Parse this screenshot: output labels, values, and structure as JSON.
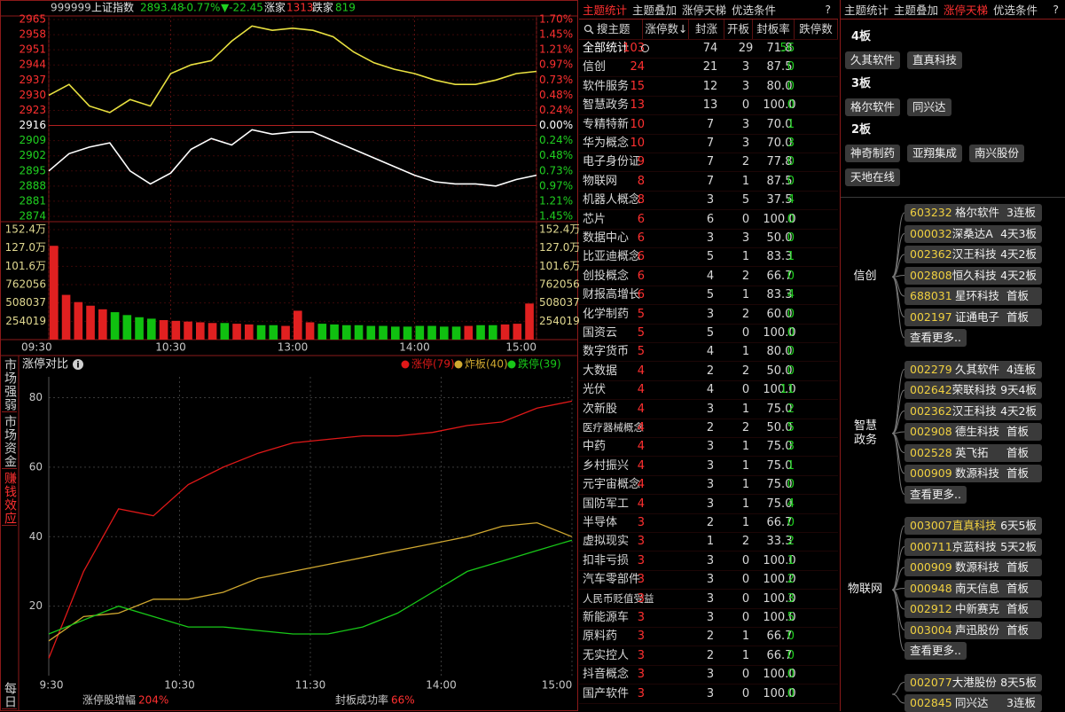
{
  "header": {
    "code": "999999",
    "name": "上证指数",
    "price": "2893.48",
    "pct": "-0.77%",
    "change": "▼-22.45",
    "up_label": "涨家",
    "up_count": "1313",
    "down_label": "跌家",
    "down_count": "819"
  },
  "top_chart": {
    "type": "line",
    "ylim": [
      2874,
      2965
    ],
    "yticks": [
      2965,
      2958,
      2951,
      2944,
      2937,
      2930,
      2923,
      2916,
      2909,
      2902,
      2895,
      2888,
      2881,
      2874
    ],
    "pct_labels": [
      "1.70%",
      "1.45%",
      "1.21%",
      "0.97%",
      "0.73%",
      "0.48%",
      "0.24%",
      "0.00%",
      "0.24%",
      "0.48%",
      "0.73%",
      "0.97%",
      "1.21%",
      "1.45%"
    ],
    "xlim": [
      0,
      240
    ],
    "xticks": [
      {
        "value": 0,
        "label": "09:30"
      },
      {
        "value": 60,
        "label": "10:30"
      },
      {
        "value": 120,
        "label": "13:00"
      },
      {
        "value": 180,
        "label": "14:00"
      },
      {
        "value": 240,
        "label": "15:00"
      }
    ],
    "series": [
      {
        "color": "#ffffff",
        "values": [
          2895,
          2903,
          2906,
          2908,
          2895,
          2889,
          2894,
          2905,
          2910,
          2907,
          2914,
          2912,
          2913,
          2913,
          2909,
          2905,
          2901,
          2897,
          2893,
          2890,
          2889,
          2889,
          2888,
          2891,
          2893
        ]
      },
      {
        "color": "#e8e040",
        "values": [
          2930,
          2935,
          2925,
          2922,
          2928,
          2925,
          2940,
          2944,
          2946,
          2955,
          2962,
          2960,
          2961,
          2960,
          2957,
          2950,
          2945,
          2942,
          2940,
          2937,
          2935,
          2935,
          2937,
          2940,
          2941
        ]
      }
    ],
    "volume": {
      "ylim": [
        0,
        1524000
      ],
      "yticks": [
        {
          "value": 1524000,
          "label": "152.4万"
        },
        {
          "value": 1270000,
          "label": "127.0万"
        },
        {
          "value": 1016000,
          "label": "101.6万"
        },
        762056,
        508037,
        254019
      ],
      "values": [
        1300000,
        620000,
        520000,
        470000,
        420000,
        380000,
        340000,
        310000,
        290000,
        270000,
        260000,
        250000,
        240000,
        230000,
        230000,
        220000,
        210000,
        200000,
        200000,
        190000,
        400000,
        240000,
        220000,
        210000,
        200000,
        200000,
        190000,
        190000,
        180000,
        180000,
        190000,
        190000,
        180000,
        180000,
        190000,
        200000,
        200000,
        210000,
        220000,
        500000
      ]
    }
  },
  "side_tabs": {
    "items": [
      "市场强弱",
      "市场资金",
      "赚钱效应",
      "每日"
    ],
    "active": 2
  },
  "lower_chart": {
    "type": "line",
    "title": "涨停对比",
    "ylim": [
      0,
      86
    ],
    "yticks": [
      80,
      60,
      40,
      20
    ],
    "xlim": [
      0,
      240
    ],
    "xticks": [
      {
        "value": 0,
        "label": "9:30"
      },
      {
        "value": 60,
        "label": "10:30"
      },
      {
        "value": 120,
        "label": "11:30"
      },
      {
        "value": 180,
        "label": "14:00"
      },
      {
        "value": 240,
        "label": "15:00"
      }
    ],
    "series": [
      {
        "name": "涨停(79)",
        "color": "#e01818",
        "values": [
          5,
          30,
          48,
          46,
          55,
          60,
          64,
          67,
          68,
          69,
          69,
          70,
          72,
          73,
          77,
          79
        ]
      },
      {
        "name": "炸板(40)",
        "color": "#d0a830",
        "values": [
          10,
          17,
          18,
          22,
          22,
          24,
          28,
          30,
          32,
          34,
          36,
          38,
          40,
          43,
          44,
          40
        ]
      },
      {
        "name": "跌停(39)",
        "color": "#18c818",
        "values": [
          12,
          16,
          20,
          17,
          14,
          14,
          13,
          12,
          12,
          14,
          18,
          24,
          30,
          33,
          36,
          39
        ]
      }
    ],
    "footer": [
      {
        "label": "涨停股增幅",
        "value": "204%"
      },
      {
        "label": "封板成功率",
        "value": "66%"
      }
    ]
  },
  "table": {
    "tabs": [
      "主题统计",
      "主题叠加",
      "涨停天梯",
      "优选条件",
      "?"
    ],
    "active": 0,
    "columns": [
      "搜主题",
      "涨停数↓",
      "封涨",
      "开板",
      "封板率",
      "跌停数"
    ],
    "rows": [
      [
        "全部统计",
        "103",
        "74",
        "29",
        "71.8",
        "56"
      ],
      [
        "信创",
        "24",
        "21",
        "3",
        "87.5",
        "0"
      ],
      [
        "软件服务",
        "15",
        "12",
        "3",
        "80.0",
        "0"
      ],
      [
        "智慧政务",
        "13",
        "13",
        "0",
        "100.0",
        "0"
      ],
      [
        "专精特新",
        "10",
        "7",
        "3",
        "70.0",
        "1"
      ],
      [
        "华为概念",
        "10",
        "7",
        "3",
        "70.0",
        "3"
      ],
      [
        "电子身份证",
        "9",
        "7",
        "2",
        "77.8",
        "0"
      ],
      [
        "物联网",
        "8",
        "7",
        "1",
        "87.5",
        "0"
      ],
      [
        "机器人概念",
        "8",
        "3",
        "5",
        "37.5",
        "4"
      ],
      [
        "芯片",
        "6",
        "6",
        "0",
        "100.0",
        "0"
      ],
      [
        "数据中心",
        "6",
        "3",
        "3",
        "50.0",
        "0"
      ],
      [
        "比亚迪概念",
        "6",
        "5",
        "1",
        "83.3",
        "1"
      ],
      [
        "创投概念",
        "6",
        "4",
        "2",
        "66.7",
        "0"
      ],
      [
        "财报高增长",
        "6",
        "5",
        "1",
        "83.3",
        "4"
      ],
      [
        "化学制药",
        "5",
        "3",
        "2",
        "60.0",
        "0"
      ],
      [
        "国资云",
        "5",
        "5",
        "0",
        "100.0",
        "0"
      ],
      [
        "数字货币",
        "5",
        "4",
        "1",
        "80.0",
        "0"
      ],
      [
        "大数据",
        "4",
        "2",
        "2",
        "50.0",
        "0"
      ],
      [
        "光伏",
        "4",
        "4",
        "0",
        "100.0",
        "11"
      ],
      [
        "次新股",
        "4",
        "3",
        "1",
        "75.0",
        "2"
      ],
      [
        "医疗器械概念",
        "4",
        "2",
        "2",
        "50.0",
        "5"
      ],
      [
        "中药",
        "4",
        "3",
        "1",
        "75.0",
        "3"
      ],
      [
        "乡村振兴",
        "4",
        "3",
        "1",
        "75.0",
        "1"
      ],
      [
        "元宇宙概念",
        "4",
        "3",
        "1",
        "75.0",
        "0"
      ],
      [
        "国防军工",
        "4",
        "3",
        "1",
        "75.0",
        "4"
      ],
      [
        "半导体",
        "3",
        "2",
        "1",
        "66.7",
        "0"
      ],
      [
        "虚拟现实",
        "3",
        "1",
        "2",
        "33.3",
        "2"
      ],
      [
        "扣非亏损",
        "3",
        "3",
        "0",
        "100.0",
        "1"
      ],
      [
        "汽车零部件",
        "3",
        "3",
        "0",
        "100.0",
        "2"
      ],
      [
        "人民币贬值受益",
        "3",
        "3",
        "0",
        "100.0",
        "3"
      ],
      [
        "新能源车",
        "3",
        "3",
        "0",
        "100.0",
        "5"
      ],
      [
        "原料药",
        "3",
        "2",
        "1",
        "66.7",
        "0"
      ],
      [
        "无实控人",
        "3",
        "2",
        "1",
        "66.7",
        "0"
      ],
      [
        "抖音概念",
        "3",
        "3",
        "0",
        "100.0",
        "0"
      ],
      [
        "国产软件",
        "3",
        "3",
        "0",
        "100.0",
        "0"
      ]
    ]
  },
  "ladder": {
    "tabs": [
      "主题统计",
      "主题叠加",
      "涨停天梯",
      "优选条件",
      "?"
    ],
    "active": 2,
    "levels": [
      {
        "label": "4板",
        "stocks": [
          "久其软件",
          "直真科技"
        ]
      },
      {
        "label": "3板",
        "stocks": [
          "格尔软件",
          "同兴达"
        ]
      },
      {
        "label": "2板",
        "stocks": [
          "神奇制药",
          "亚翔集成",
          "南兴股份",
          "天地在线"
        ]
      }
    ],
    "groups": [
      {
        "label": "信创",
        "items": [
          {
            "code": "603232",
            "name": "格尔软件",
            "board": "3连板"
          },
          {
            "code": "000032",
            "name": "深桑达A",
            "board": "4天3板"
          },
          {
            "code": "002362",
            "name": "汉王科技",
            "board": "4天2板"
          },
          {
            "code": "002808",
            "name": "恒久科技",
            "board": "4天2板"
          },
          {
            "code": "688031",
            "name": "星环科技",
            "board": "首板"
          },
          {
            "code": "002197",
            "name": "证通电子",
            "board": "首板"
          }
        ],
        "more": "查看更多.."
      },
      {
        "label": "智慧政务",
        "items": [
          {
            "code": "002279",
            "name": "久其软件",
            "board": "4连板"
          },
          {
            "code": "002642",
            "name": "荣联科技",
            "board": "9天4板"
          },
          {
            "code": "002362",
            "name": "汉王科技",
            "board": "4天2板"
          },
          {
            "code": "002908",
            "name": "德生科技",
            "board": "首板"
          },
          {
            "code": "002528",
            "name": "英飞拓",
            "board": "首板"
          },
          {
            "code": "000909",
            "name": "数源科技",
            "board": "首板"
          }
        ],
        "more": "查看更多.."
      },
      {
        "label": "物联网",
        "items": [
          {
            "code": "003007",
            "name": "直真科技",
            "board": "6天5板",
            "highlight": true
          },
          {
            "code": "000711",
            "name": "京蓝科技",
            "board": "5天2板"
          },
          {
            "code": "000909",
            "name": "数源科技",
            "board": "首板"
          },
          {
            "code": "000948",
            "name": "南天信息",
            "board": "首板"
          },
          {
            "code": "002912",
            "name": "中新赛克",
            "board": "首板"
          },
          {
            "code": "003004",
            "name": "声迅股份",
            "board": "首板"
          }
        ],
        "more": "查看更多.."
      },
      {
        "items": [
          {
            "code": "002077",
            "name": "大港股份",
            "board": "8天5板"
          },
          {
            "code": "002845",
            "name": "同兴达",
            "board": "3连板"
          }
        ]
      }
    ]
  }
}
